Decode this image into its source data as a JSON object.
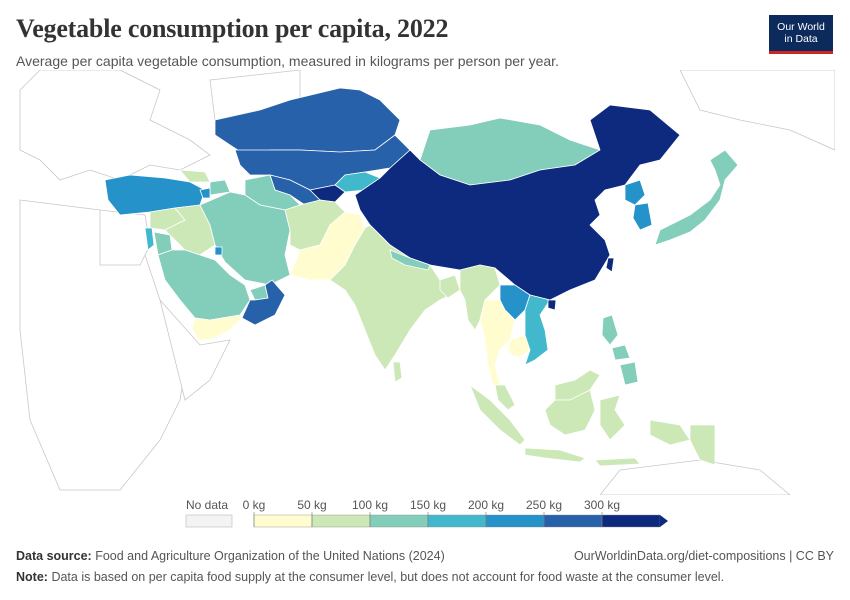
{
  "title": "Vegetable consumption per capita, 2022",
  "subtitle": "Average per capita vegetable consumption, measured in kilograms per person per year.",
  "logo": {
    "line1": "Our World",
    "line2": "in Data"
  },
  "legend": {
    "no_data_label": "No data",
    "labels": [
      "0 kg",
      "50 kg",
      "100 kg",
      "150 kg",
      "200 kg",
      "250 kg",
      "300 kg"
    ],
    "colors": [
      "#fffdd0",
      "#cbe8b6",
      "#83cdbb",
      "#42b8cd",
      "#2592c9",
      "#2761aa",
      "#0e2a7e"
    ]
  },
  "footer": {
    "source_label": "Data source:",
    "source_text": "Food and Agriculture Organization of the United Nations (2024)",
    "url_text": "OurWorldinData.org/diet-compositions | CC BY",
    "note_label": "Note:",
    "note_text": "Data is based on per capita food supply at the consumer level, but does not account for food waste at the consumer level."
  }
}
